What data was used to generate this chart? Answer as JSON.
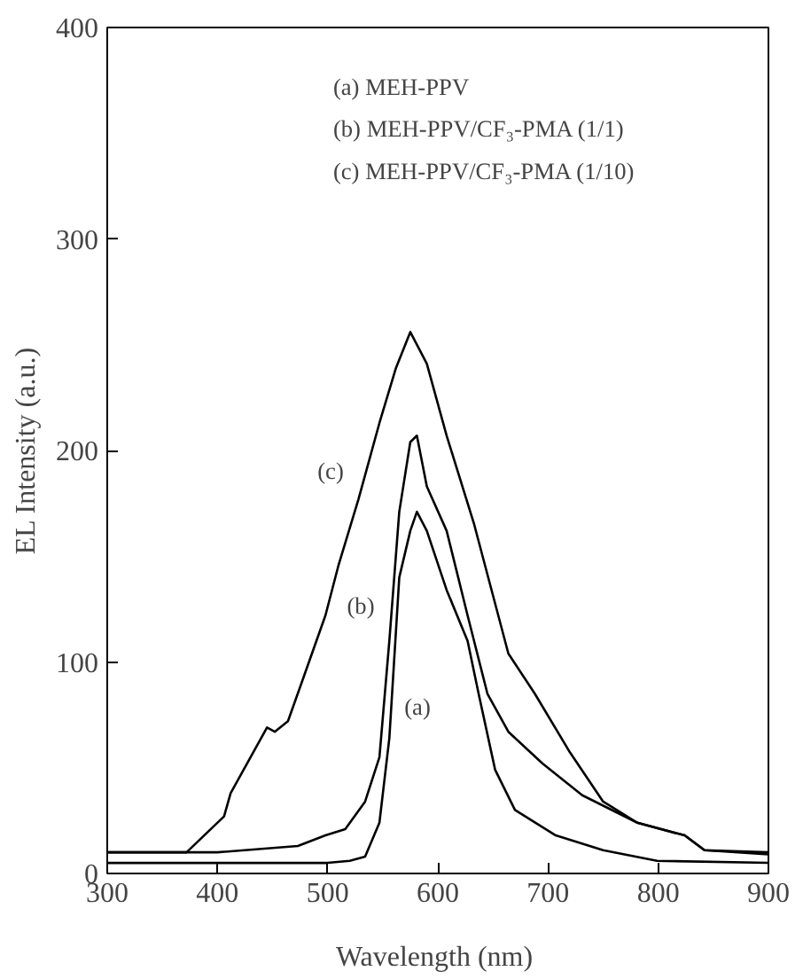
{
  "chart_data": {
    "type": "line",
    "xlabel": "Wavelength  (nm)",
    "ylabel": "EL Intensity (a.u.)",
    "xlim": [
      300,
      900
    ],
    "ylim": [
      0,
      400
    ],
    "xticks": [
      300,
      400,
      500,
      600,
      700,
      800,
      900
    ],
    "yticks": [
      0,
      100,
      200,
      300,
      400
    ],
    "grid": false,
    "marker": "none",
    "line_style": "solid",
    "series": [
      {
        "color": "#000000",
        "x": [
          300,
          500,
          520,
          534,
          547,
          556,
          565,
          575,
          581,
          590,
          608,
          627,
          637,
          652,
          670,
          707,
          750,
          799,
          900
        ],
        "values": [
          5,
          5,
          6,
          8,
          24,
          64,
          140,
          162,
          171,
          162,
          134,
          110,
          85,
          49,
          30,
          18,
          11,
          6,
          5
        ]
      },
      {
        "color": "#000000",
        "x": [
          300,
          400,
          473,
          498,
          516,
          534,
          547,
          556,
          565,
          575,
          581,
          590,
          608,
          627,
          645,
          664,
          695,
          731,
          781,
          824,
          842,
          900
        ],
        "values": [
          10,
          10,
          13,
          18,
          21,
          34,
          55,
          110,
          171,
          204,
          207,
          183,
          162,
          122,
          85,
          67,
          52,
          37,
          24,
          18,
          11,
          9
        ]
      },
      {
        "color": "#000000",
        "x": [
          300,
          372,
          406,
          412,
          445,
          452,
          464,
          479,
          498,
          510,
          528,
          547,
          562,
          575,
          590,
          608,
          633,
          664,
          688,
          719,
          750,
          781,
          824,
          842,
          900
        ],
        "values": [
          10,
          10,
          27,
          38,
          69,
          67,
          72,
          94,
          122,
          146,
          177,
          213,
          239,
          256,
          241,
          207,
          165,
          104,
          85,
          58,
          34,
          24,
          18,
          11,
          10
        ]
      }
    ],
    "annotations": [
      "(a)",
      "(b)",
      "(c)",
      "(a) MEH-PPV",
      "(b) MEH-PPV/CF₃-PMA (1/1)",
      "(c) MEH-PPV/CF₃-PMA (1/10)"
    ]
  }
}
